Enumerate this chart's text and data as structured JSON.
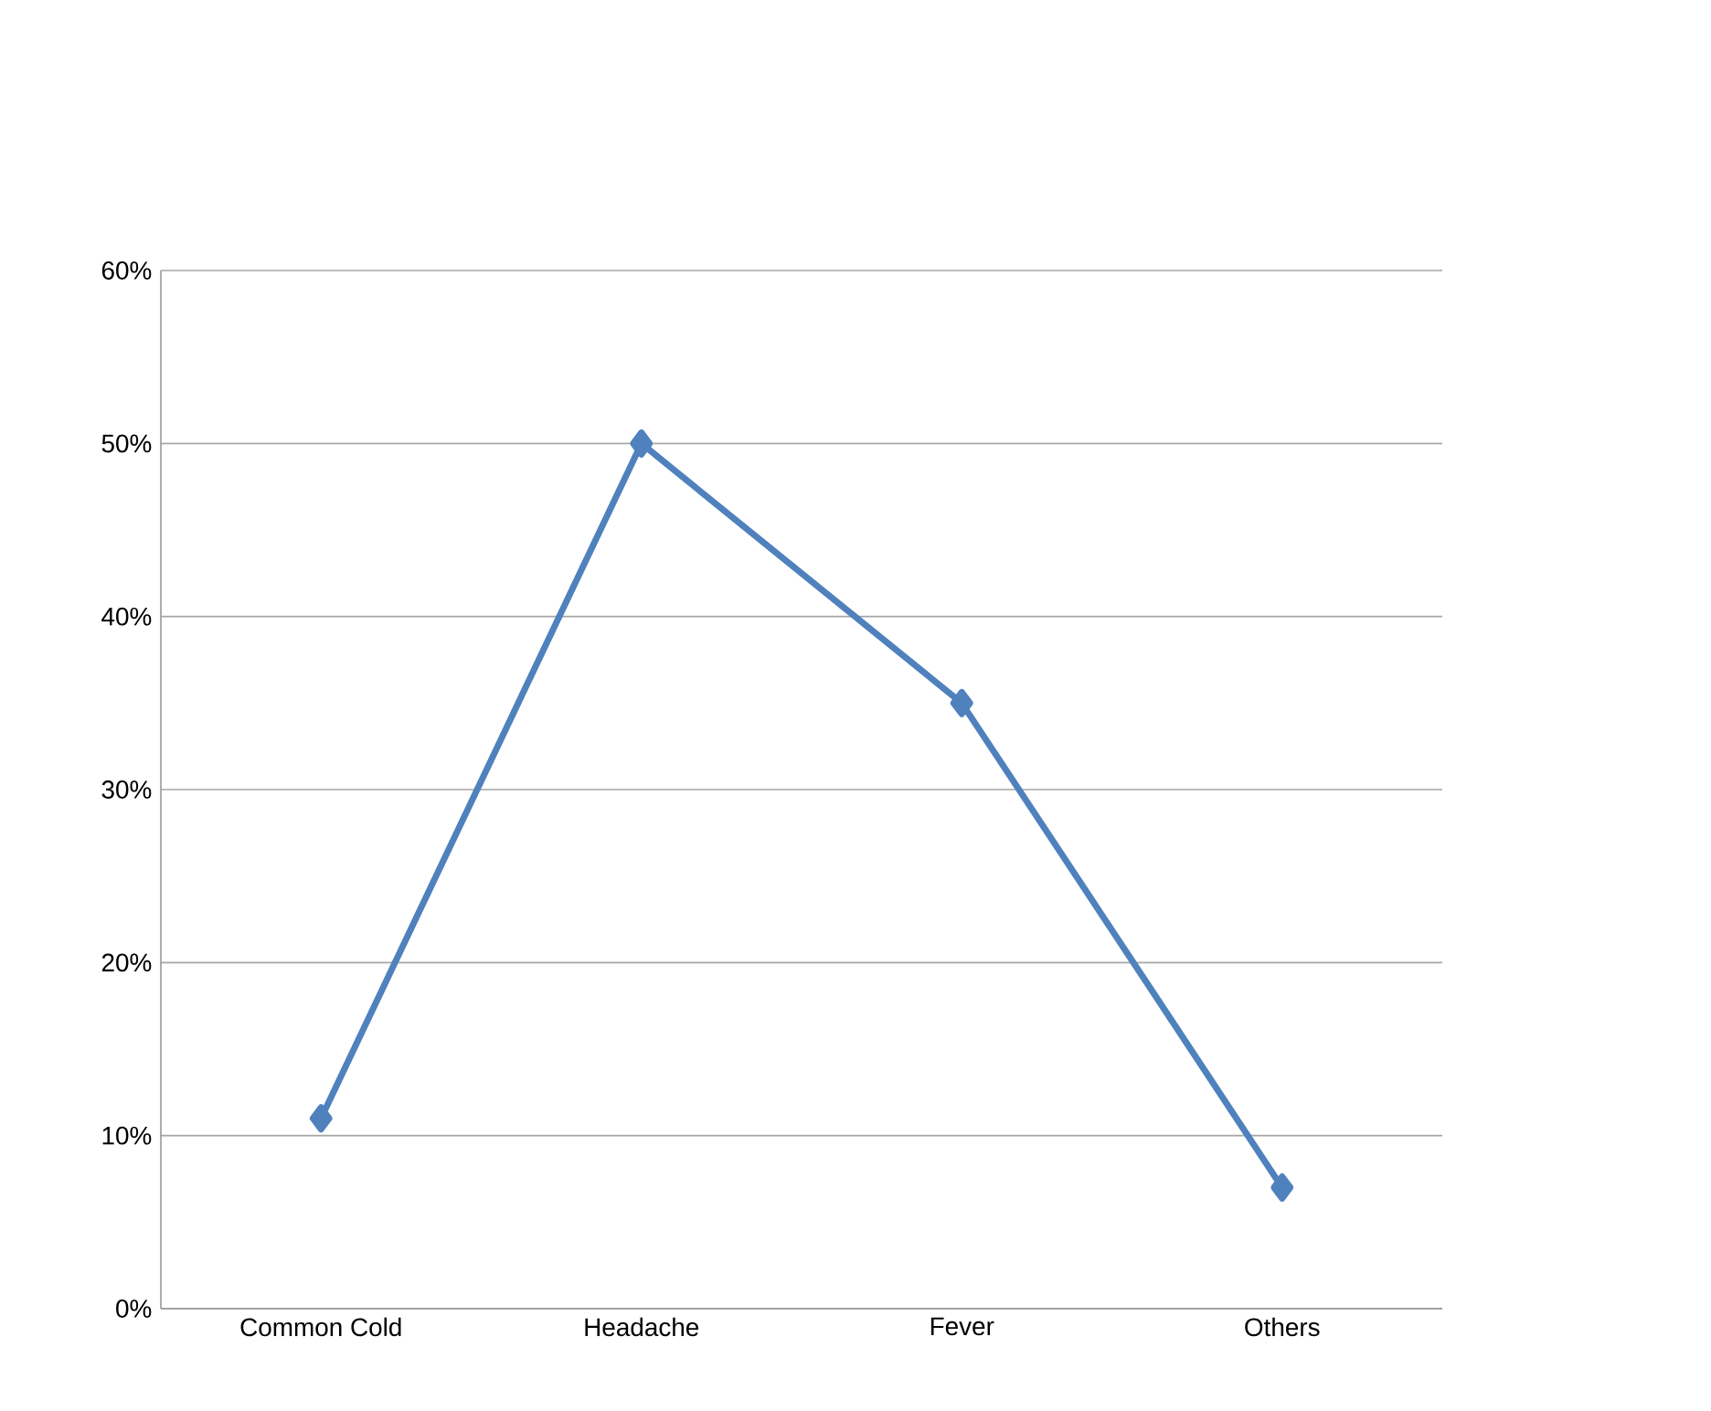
{
  "chart_data": {
    "type": "line",
    "categories": [
      "Common Cold",
      "Headache",
      "Fever",
      "Others"
    ],
    "values": [
      11,
      50,
      35,
      7
    ],
    "color": "#4f81bd",
    "marker": "diamond",
    "ylim": [
      0,
      60
    ],
    "yticks": [
      {
        "value": 0,
        "label": "0%"
      },
      {
        "value": 10,
        "label": "10%"
      },
      {
        "value": 20,
        "label": "20%"
      },
      {
        "value": 30,
        "label": "30%"
      },
      {
        "value": 40,
        "label": "40%"
      },
      {
        "value": 50,
        "label": "50%"
      },
      {
        "value": 60,
        "label": "60%"
      }
    ],
    "grid": "y"
  }
}
